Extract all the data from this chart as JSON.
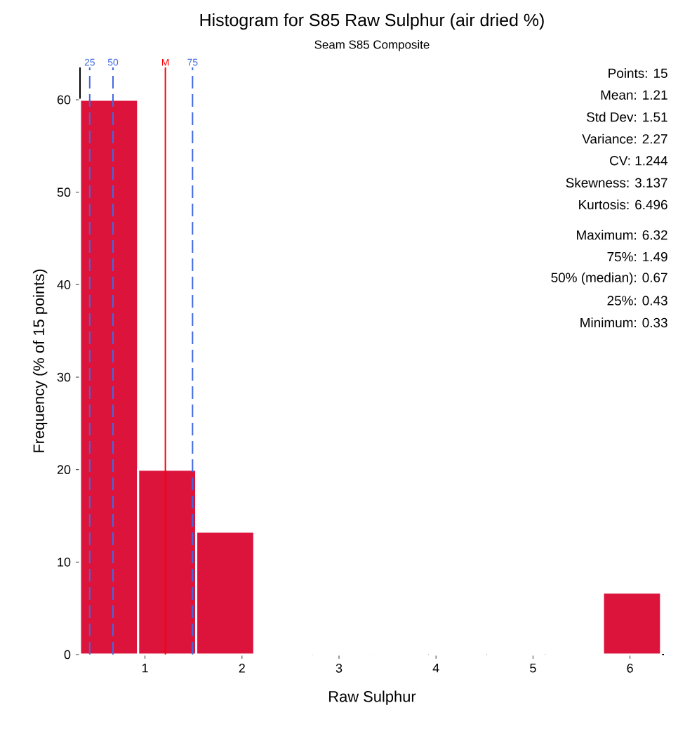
{
  "chart_data": {
    "type": "histogram",
    "title": "Histogram for S85 Raw Sulphur (air dried %)",
    "subtitle": "Seam S85 Composite",
    "xlabel": "Raw Sulphur",
    "ylabel": "Frequency (% of 15 points)",
    "bins": [
      0.33,
      0.929,
      1.528,
      2.127,
      2.726,
      3.325,
      3.924,
      4.523,
      5.122,
      5.721,
      6.32
    ],
    "values": [
      60,
      20,
      13.3,
      0,
      0,
      0,
      0,
      0,
      0,
      6.7
    ],
    "color": "#dc143c",
    "xlim": [
      0.33,
      6.35
    ],
    "ylim": [
      0,
      63.5
    ],
    "xticks": [
      1,
      2,
      3,
      4,
      5,
      6
    ],
    "yticks": [
      0,
      10,
      20,
      30,
      40,
      50,
      60
    ],
    "grid": false,
    "ref_lines": [
      {
        "axis": "x",
        "value": 0.43,
        "color": "#4169e1",
        "line_style": "dashed"
      },
      {
        "axis": "x",
        "value": 0.67,
        "color": "#4169e1",
        "line_style": "dashed"
      },
      {
        "axis": "x",
        "value": 1.21,
        "color": "#ff0000",
        "line_style": "solid"
      },
      {
        "axis": "x",
        "value": 1.49,
        "color": "#4169e1",
        "line_style": "dashed"
      }
    ],
    "annotations": [
      {
        "text": "25",
        "x": 0.43,
        "y": 63.5
      },
      {
        "text": "50",
        "x": 0.67,
        "y": 63.5
      },
      {
        "text": "M",
        "x": 1.21,
        "y": 63.5
      },
      {
        "text": "75",
        "x": 1.49,
        "y": 63.5
      },
      "Points: 15",
      "Mean: 1.21",
      "Std Dev: 1.51",
      "Variance: 2.27",
      "CV: 1.244",
      "Skewness: 3.137",
      "Kurtosis: 6.496",
      "Maximum: 6.32",
      "75%: 1.49",
      "50% (median): 0.67",
      "25%: 0.43",
      "Minimum: 0.33"
    ]
  }
}
